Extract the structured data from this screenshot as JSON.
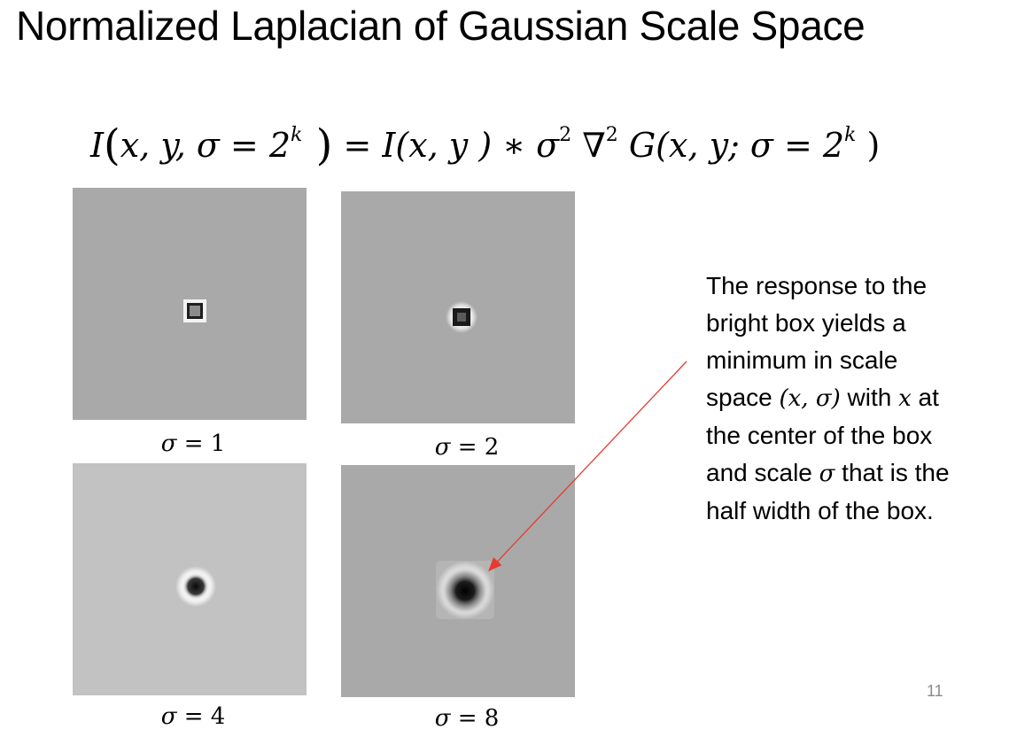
{
  "slide": {
    "title": "Normalized Laplacian of Gaussian Scale Space",
    "page_number": "11"
  },
  "formula": {
    "lhs_I": "I",
    "lhs_args": "x, y, σ = 2",
    "lhs_exp": "k",
    "eq": " = ",
    "conv": "I(x, y ) ∗ σ",
    "sigma_exp": "2",
    "nabla": " ∇",
    "nabla_exp": "2",
    "g_part": " G(x, y; σ = 2",
    "g_exp": "k",
    "close": " )"
  },
  "panels": [
    {
      "caption_sym": "σ",
      "caption_rest": " = 1"
    },
    {
      "caption_sym": "σ",
      "caption_rest": " = 2"
    },
    {
      "caption_sym": "σ",
      "caption_rest": " = 4"
    },
    {
      "caption_sym": "σ",
      "caption_rest": " = 8"
    }
  ],
  "note": {
    "line1": "The response to the",
    "line2": "bright box yields a",
    "line3": "minimum in scale",
    "line4a": "space ",
    "line4_math": "(x, σ)",
    "line4b": "  with ",
    "line4_x": "x",
    "line4c": " at",
    "line5": "the center of the box",
    "line6a": "and scale ",
    "line6_sigma": "σ",
    "line6b": "  that is the",
    "line7": "half width of the box."
  },
  "colors": {
    "panel_bg": "#a9a9a9",
    "panel_bg_light": "#c2c2c2",
    "arrow": "#e53a2f"
  }
}
